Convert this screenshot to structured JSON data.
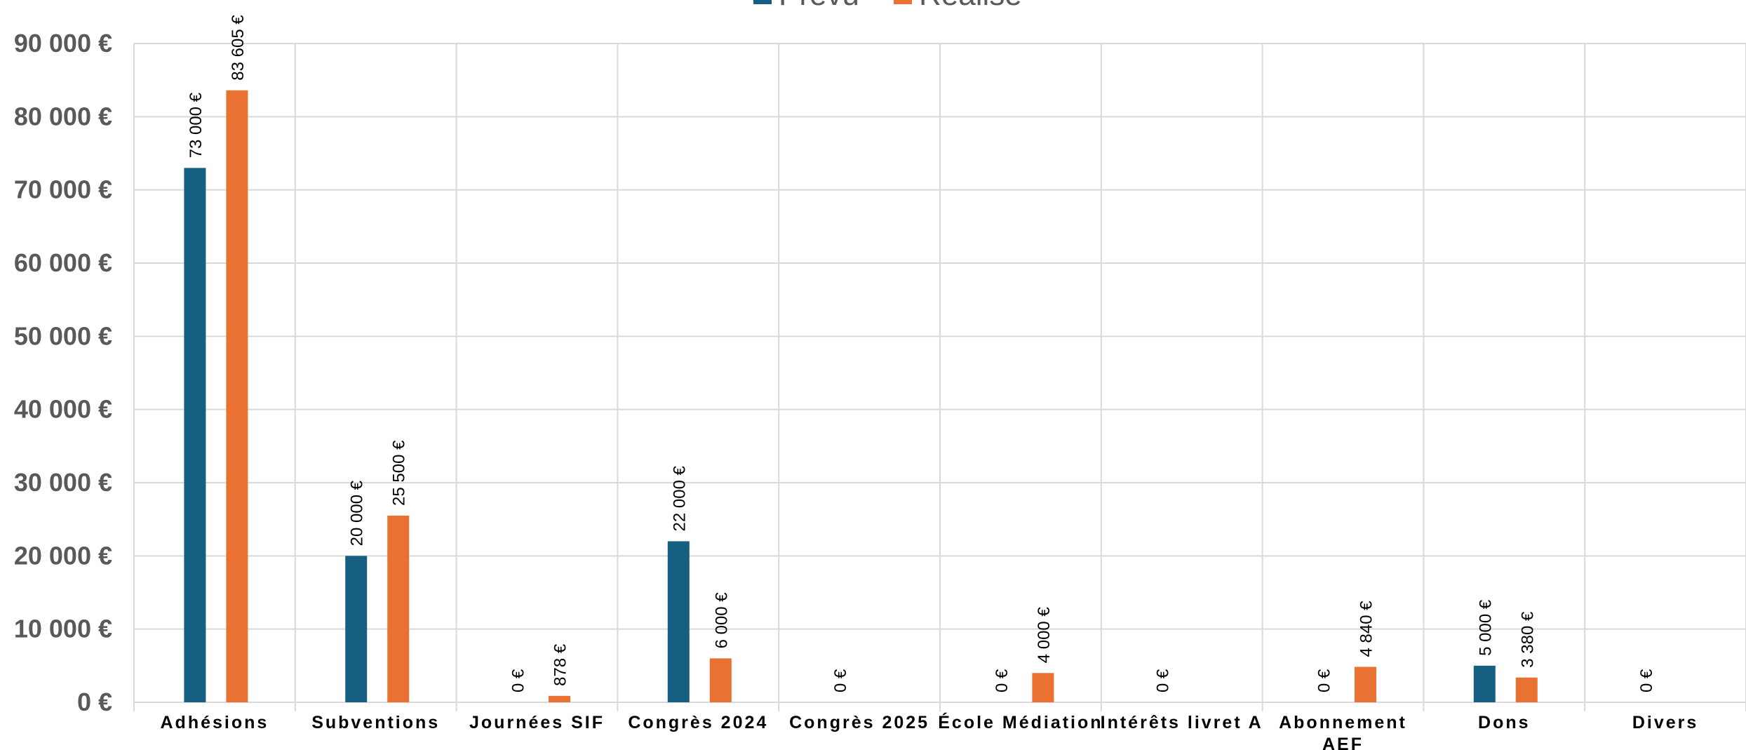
{
  "chart_data": {
    "type": "bar",
    "categories": [
      "Adhésions",
      "Subventions",
      "Journées SIF",
      "Congrès 2024",
      "Congrès 2025",
      "École Médiation",
      "Intérêts livret A",
      [
        "Abonnement",
        "AEF"
      ],
      "Dons",
      "Divers"
    ],
    "series": [
      {
        "name": "Prévu",
        "color": "#156082",
        "values": [
          73000,
          20000,
          0,
          22000,
          0,
          0,
          0,
          0,
          5000,
          0
        ],
        "labels": [
          "73 000 €",
          "20 000 €",
          "0 €",
          "22 000 €",
          "0 €",
          "0 €",
          "0 €",
          "0 €",
          "5 000 €",
          "0 €"
        ]
      },
      {
        "name": "Réalisé",
        "color": "#E97132",
        "values": [
          83605,
          25500,
          878,
          6000,
          null,
          4000,
          null,
          4840,
          3380,
          null
        ],
        "labels": [
          "83 605 €",
          "25 500 €",
          "878 €",
          "6 000 €",
          "",
          "4 000 €",
          "",
          "4 840 €",
          "3 380 €",
          ""
        ]
      }
    ],
    "y_ticks": [
      "0 €",
      "10 000 €",
      "20 000 €",
      "30 000 €",
      "40 000 €",
      "50 000 €",
      "60 000 €",
      "70 000 €",
      "80 000 €",
      "90 000 €"
    ],
    "ylim": [
      0,
      90000
    ],
    "y_step": 10000,
    "title": "",
    "xlabel": "",
    "ylabel": "",
    "grid": true,
    "legend": "top",
    "gridline_color": "#D9D9D9"
  }
}
